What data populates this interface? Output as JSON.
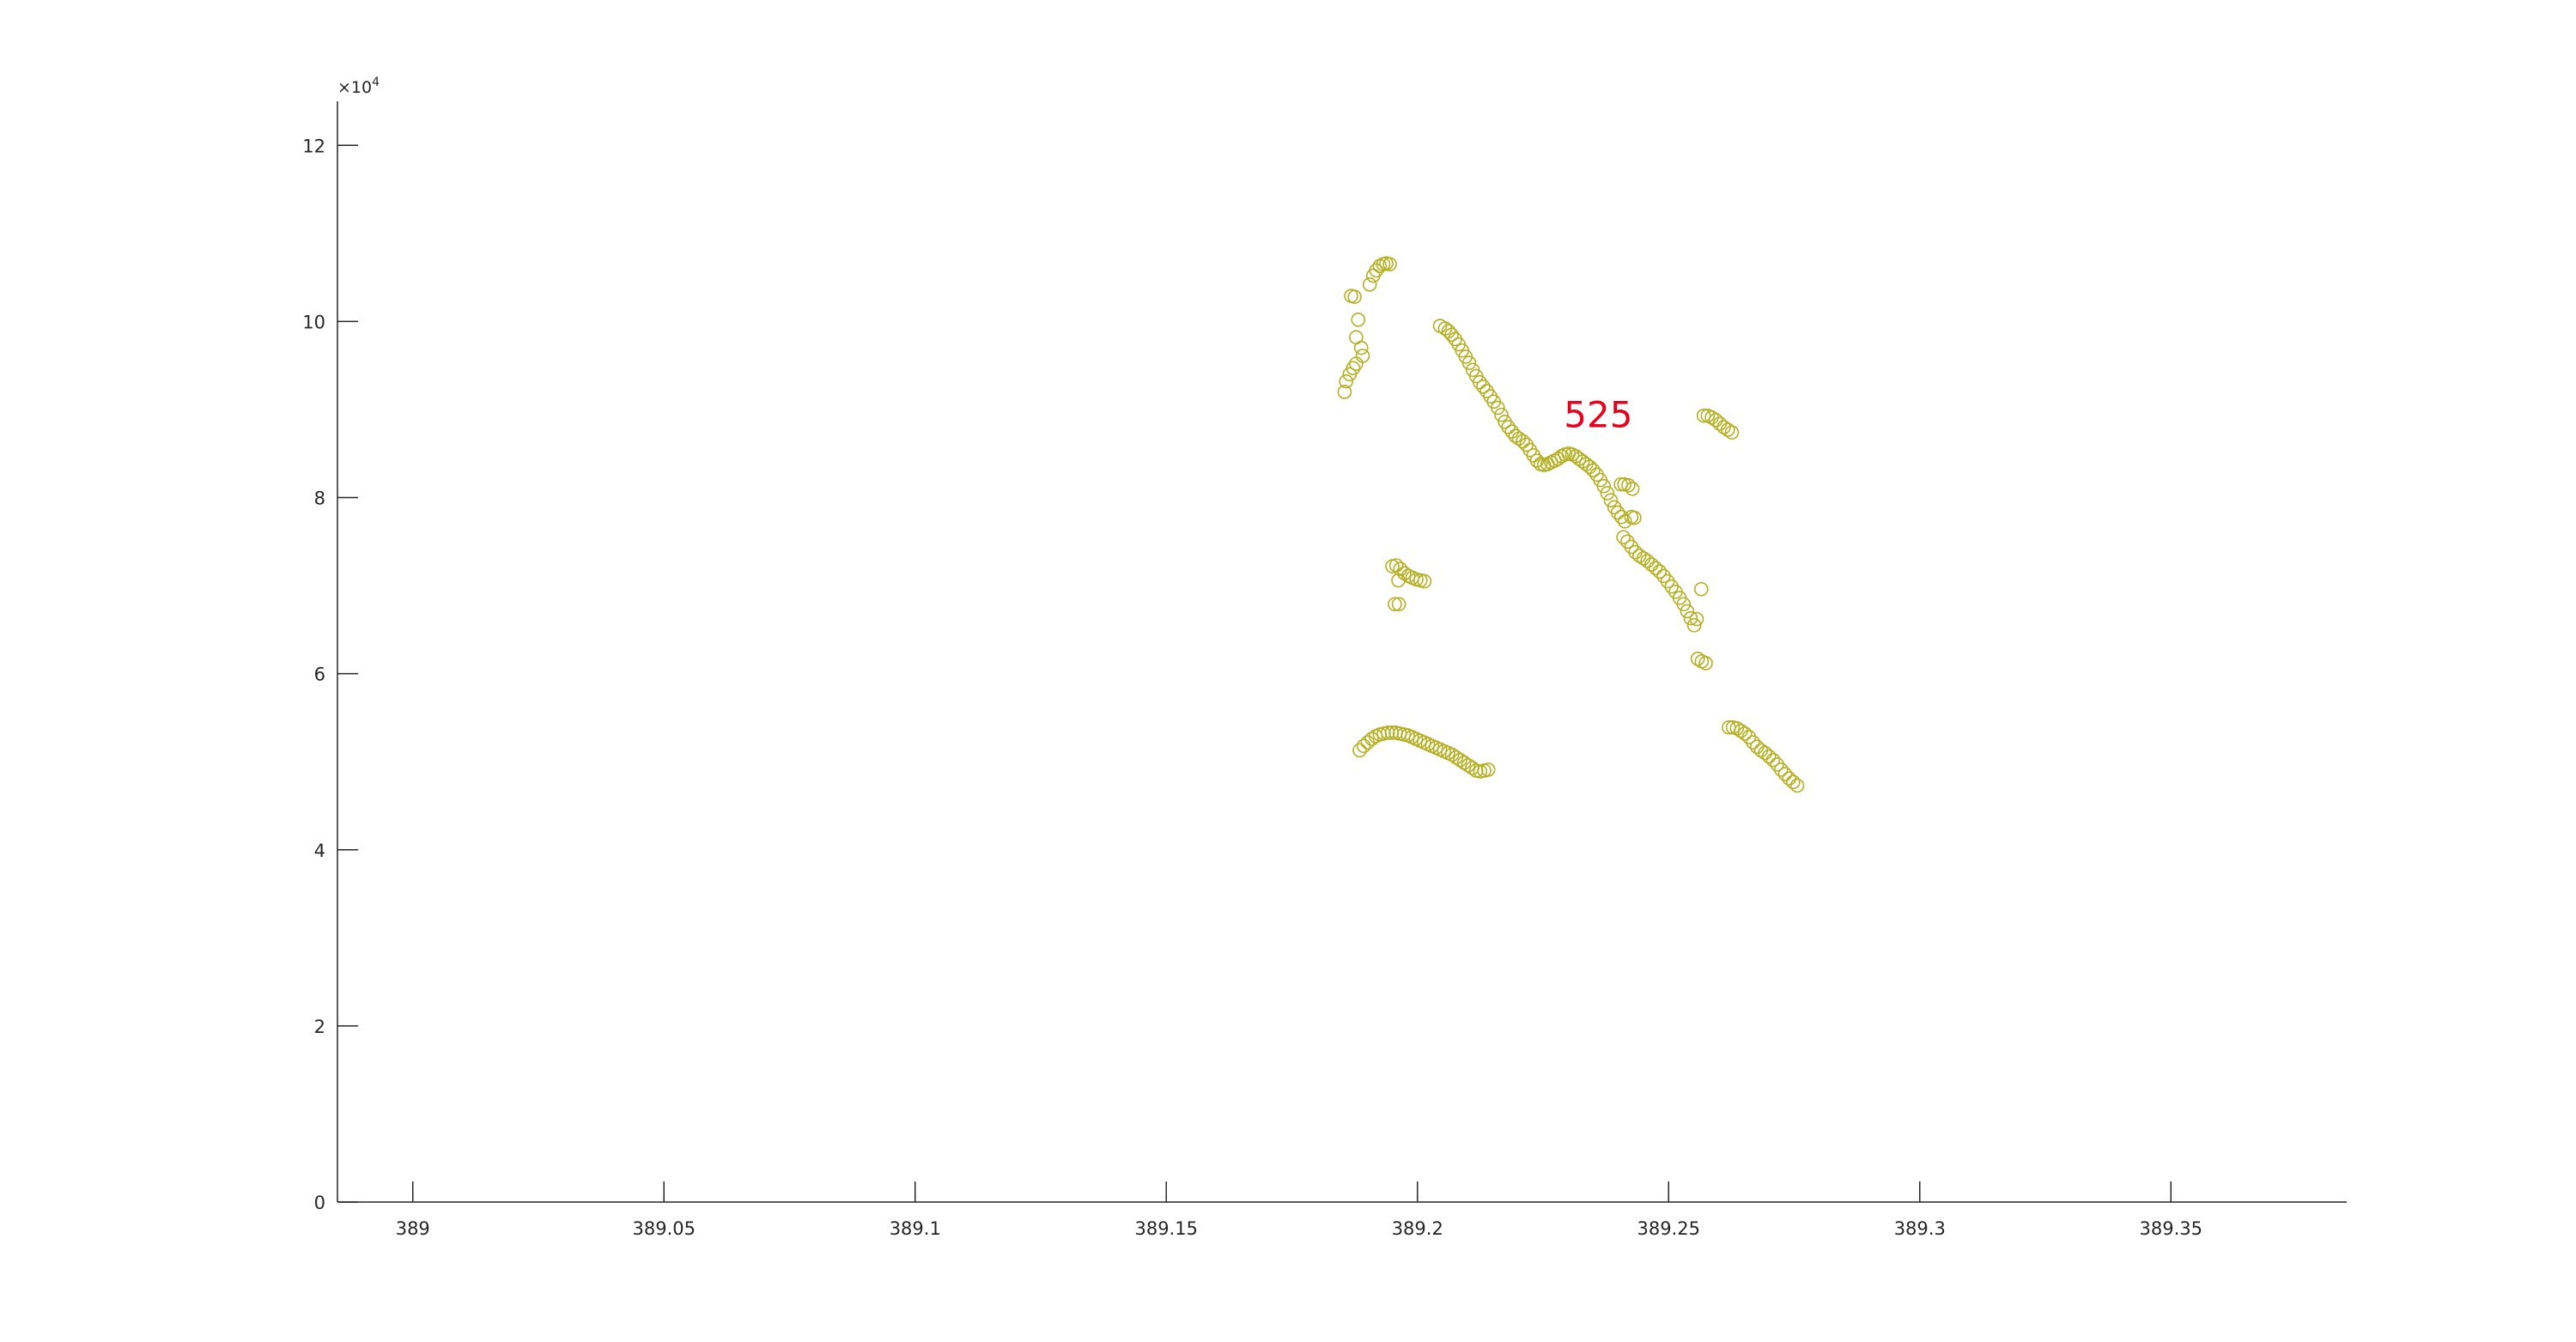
{
  "chart_data": {
    "type": "scatter",
    "title": "",
    "xlabel": "",
    "ylabel": "",
    "xlim": [
      388.985,
      389.385
    ],
    "ylim": [
      0,
      125000
    ],
    "x_ticks": [
      389,
      389.05,
      389.1,
      389.15,
      389.2,
      389.25,
      389.3,
      389.35
    ],
    "x_tick_labels": [
      "389",
      "389.05",
      "389.1",
      "389.15",
      "389.2",
      "389.25",
      "389.3",
      "389.35"
    ],
    "y_ticks": [
      0,
      20000,
      40000,
      60000,
      80000,
      100000,
      120000
    ],
    "y_tick_labels": [
      "0",
      "2",
      "4",
      "6",
      "8",
      "10",
      "12"
    ],
    "y_exponent_label": "×10",
    "y_exponent_power": "4",
    "grid": false,
    "marker": "open-circle",
    "marker_color": "#b5b022",
    "annotation": {
      "text": "525",
      "x": 389.236,
      "y": 88000,
      "color": "#e8001c"
    },
    "series": [
      {
        "points": [
          [
            389.1855,
            92000
          ],
          [
            389.1858,
            93200
          ],
          [
            389.1865,
            94000
          ],
          [
            389.1872,
            94700
          ],
          [
            389.1878,
            95200
          ],
          [
            389.1868,
            102900
          ],
          [
            389.1875,
            102800
          ],
          [
            389.1882,
            100200
          ],
          [
            389.1878,
            98200
          ],
          [
            389.1888,
            97000
          ],
          [
            389.1891,
            96100
          ],
          [
            389.1905,
            104200
          ],
          [
            389.1912,
            105200
          ],
          [
            389.1918,
            105800
          ],
          [
            389.1925,
            106300
          ],
          [
            389.1932,
            106500
          ],
          [
            389.1938,
            106600
          ],
          [
            389.1945,
            106500
          ],
          [
            389.2045,
            99500
          ],
          [
            389.2055,
            99200
          ],
          [
            389.2062,
            98900
          ],
          [
            389.2068,
            98500
          ],
          [
            389.2075,
            98000
          ],
          [
            389.2082,
            97400
          ],
          [
            389.2089,
            96700
          ],
          [
            389.2096,
            96000
          ],
          [
            389.2103,
            95300
          ],
          [
            389.211,
            94500
          ],
          [
            389.2117,
            93800
          ],
          [
            389.2124,
            93100
          ],
          [
            389.2131,
            92600
          ],
          [
            389.2138,
            92100
          ],
          [
            389.2145,
            91500
          ],
          [
            389.2152,
            90900
          ],
          [
            389.216,
            90200
          ],
          [
            389.2167,
            89400
          ],
          [
            389.2174,
            88600
          ],
          [
            389.2181,
            88000
          ],
          [
            389.2188,
            87500
          ],
          [
            389.2195,
            87000
          ],
          [
            389.2202,
            86700
          ],
          [
            389.221,
            86400
          ],
          [
            389.2217,
            86000
          ],
          [
            389.2224,
            85400
          ],
          [
            389.2231,
            84800
          ],
          [
            389.2238,
            84200
          ],
          [
            389.2245,
            83800
          ],
          [
            389.2252,
            83700
          ],
          [
            389.2259,
            83800
          ],
          [
            389.2266,
            84000
          ],
          [
            389.2273,
            84200
          ],
          [
            389.228,
            84400
          ],
          [
            389.2287,
            84700
          ],
          [
            389.2294,
            84900
          ],
          [
            389.2301,
            85000
          ],
          [
            389.2308,
            84900
          ],
          [
            389.2315,
            84700
          ],
          [
            389.2322,
            84400
          ],
          [
            389.2329,
            84100
          ],
          [
            389.2336,
            83800
          ],
          [
            389.2343,
            83500
          ],
          [
            389.235,
            83100
          ],
          [
            389.2357,
            82600
          ],
          [
            389.2364,
            82000
          ],
          [
            389.2371,
            81300
          ],
          [
            389.2378,
            80500
          ],
          [
            389.2385,
            79700
          ],
          [
            389.2392,
            78900
          ],
          [
            389.2399,
            78300
          ],
          [
            389.2406,
            77800
          ],
          [
            389.2413,
            77300
          ],
          [
            389.2405,
            81500
          ],
          [
            389.2412,
            81500
          ],
          [
            389.242,
            81400
          ],
          [
            389.2428,
            81000
          ],
          [
            389.2426,
            77800
          ],
          [
            389.2432,
            77700
          ],
          [
            389.241,
            75500
          ],
          [
            389.2418,
            75000
          ],
          [
            389.2426,
            74400
          ],
          [
            389.2434,
            73800
          ],
          [
            389.2442,
            73400
          ],
          [
            389.245,
            73100
          ],
          [
            389.2458,
            72800
          ],
          [
            389.2466,
            72400
          ],
          [
            389.2474,
            72000
          ],
          [
            389.2482,
            71600
          ],
          [
            389.249,
            71100
          ],
          [
            389.2498,
            70500
          ],
          [
            389.2506,
            69900
          ],
          [
            389.2514,
            69300
          ],
          [
            389.2522,
            68600
          ],
          [
            389.253,
            67900
          ],
          [
            389.2537,
            67100
          ],
          [
            389.2544,
            66300
          ],
          [
            389.2551,
            65500
          ],
          [
            389.2556,
            66200
          ],
          [
            389.2565,
            69600
          ],
          [
            389.2558,
            61700
          ],
          [
            389.2566,
            61400
          ],
          [
            389.2574,
            61200
          ],
          [
            389.257,
            89300
          ],
          [
            389.2578,
            89300
          ],
          [
            389.2586,
            89100
          ],
          [
            389.2594,
            88800
          ],
          [
            389.2602,
            88400
          ],
          [
            389.261,
            88000
          ],
          [
            389.2618,
            87700
          ],
          [
            389.2626,
            87400
          ],
          [
            389.262,
            53900
          ],
          [
            389.2628,
            53900
          ],
          [
            389.2636,
            53800
          ],
          [
            389.2644,
            53500
          ],
          [
            389.2652,
            53200
          ],
          [
            389.266,
            52800
          ],
          [
            389.2668,
            52200
          ],
          [
            389.2676,
            51700
          ],
          [
            389.2684,
            51300
          ],
          [
            389.2692,
            51000
          ],
          [
            389.27,
            50600
          ],
          [
            389.2708,
            50200
          ],
          [
            389.2716,
            49700
          ],
          [
            389.2724,
            49100
          ],
          [
            389.2732,
            48600
          ],
          [
            389.274,
            48100
          ],
          [
            389.2748,
            47700
          ],
          [
            389.2756,
            47300
          ],
          [
            389.1885,
            51300
          ],
          [
            389.1893,
            51800
          ],
          [
            389.1901,
            52200
          ],
          [
            389.1909,
            52600
          ],
          [
            389.1917,
            52900
          ],
          [
            389.1925,
            53100
          ],
          [
            389.1933,
            53200
          ],
          [
            389.1941,
            53300
          ],
          [
            389.1949,
            53300
          ],
          [
            389.1957,
            53300
          ],
          [
            389.1965,
            53200
          ],
          [
            389.1973,
            53100
          ],
          [
            389.1981,
            53000
          ],
          [
            389.1989,
            52800
          ],
          [
            389.1997,
            52600
          ],
          [
            389.2005,
            52400
          ],
          [
            389.2013,
            52200
          ],
          [
            389.2021,
            52000
          ],
          [
            389.2029,
            51800
          ],
          [
            389.2037,
            51600
          ],
          [
            389.2045,
            51400
          ],
          [
            389.2053,
            51200
          ],
          [
            389.2061,
            51000
          ],
          [
            389.2069,
            50800
          ],
          [
            389.2077,
            50500
          ],
          [
            389.2085,
            50200
          ],
          [
            389.2093,
            49900
          ],
          [
            389.2101,
            49600
          ],
          [
            389.2109,
            49300
          ],
          [
            389.2117,
            49000
          ],
          [
            389.2125,
            48900
          ],
          [
            389.2133,
            49000
          ],
          [
            389.2141,
            49100
          ],
          [
            389.195,
            72200
          ],
          [
            389.1958,
            72300
          ],
          [
            389.1966,
            71900
          ],
          [
            389.1974,
            71400
          ],
          [
            389.1982,
            71100
          ],
          [
            389.199,
            70900
          ],
          [
            389.1998,
            70700
          ],
          [
            389.2006,
            70600
          ],
          [
            389.2014,
            70500
          ],
          [
            389.1962,
            70600
          ],
          [
            389.1955,
            67900
          ],
          [
            389.1963,
            67900
          ]
        ]
      }
    ]
  }
}
